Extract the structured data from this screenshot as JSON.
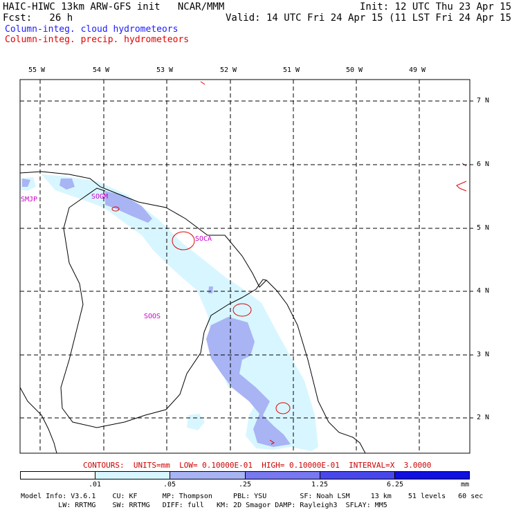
{
  "header": {
    "title": "HAIC-HIWC 13km ARW-GFS init   NCAR/MMM",
    "forecast": "Fcst:   26 h",
    "init": "Init: 12 UTC Thu 23 Apr 15",
    "valid": "Valid: 14 UTC Fri 24 Apr 15 (11 LST Fri 24 Apr 15)",
    "legend_cloud": "Column-integ. cloud hydrometeors",
    "legend_precip": "Column-integ. precip. hydrometeors"
  },
  "map": {
    "lon_labels": [
      "55 W",
      "54 W",
      "53 W",
      "52 W",
      "51 W",
      "50 W",
      "49 W"
    ],
    "lat_labels": [
      "7 N",
      "6 N",
      "5 N",
      "4 N",
      "3 N",
      "2 N"
    ],
    "stations": [
      "SMJP",
      "SOGM",
      "SOCA",
      "SOOS"
    ]
  },
  "contours": "CONTOURS:  UNITS=mm  LOW= 0.10000E-01  HIGH= 0.10000E-01  INTERVAL=X  3.0000",
  "colorbar": {
    "labels": [
      ".01",
      ".05",
      ".25",
      "1.25",
      "6.25"
    ],
    "unit": "mm",
    "colors": [
      "#ffffff",
      "#d8f6ff",
      "#a8b4f4",
      "#7878f0",
      "#4848ea",
      "#1010e0"
    ]
  },
  "footer": {
    "line1": "Model Info: V3.6.1    CU: KF      MP: Thompson     PBL: YSU        SF: Noah LSM     13 km    51 levels   60 sec",
    "line2": "         LW: RRTMG    SW: RRTMG   DIFF: full   KM: 2D Smagor DAMP: Rayleigh3  SFLAY: MM5"
  },
  "colors": {
    "cloud_legend": "#1a1aff",
    "precip_legend": "#e00000",
    "stations": "#cc00cc",
    "contour_text": "#cc0000"
  }
}
